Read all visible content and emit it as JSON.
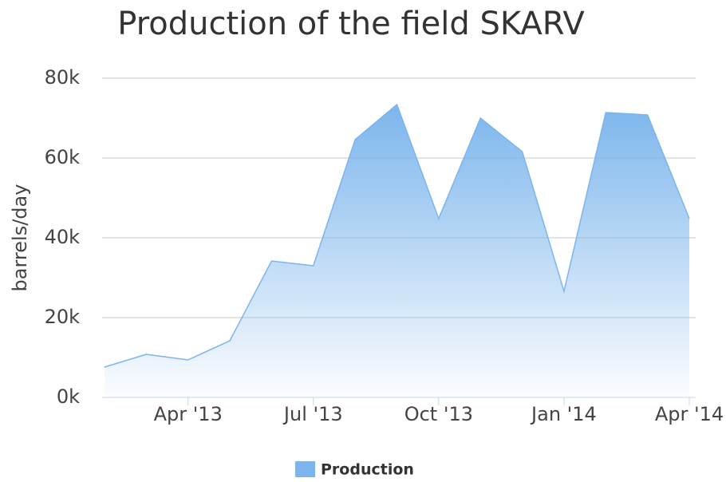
{
  "chart_data": {
    "type": "area",
    "title": "Production of the field SKARV",
    "y_label": "barrels/day",
    "x": [
      "2013-02",
      "2013-03",
      "2013-04",
      "2013-05",
      "2013-06",
      "2013-07",
      "2013-08",
      "2013-09",
      "2013-10",
      "2013-11",
      "2013-12",
      "2014-01",
      "2014-02",
      "2014-03",
      "2014-04"
    ],
    "series": [
      {
        "name": "Production",
        "color": "#7cb5ec",
        "values": [
          7600,
          10800,
          9400,
          14200,
          34200,
          33000,
          64600,
          73400,
          44800,
          70000,
          61600,
          26600,
          71400,
          70800,
          44800
        ]
      }
    ],
    "xlim": [
      "2013-02",
      "2014-04"
    ],
    "xticks": [
      {
        "value": "2013-04",
        "label": "Apr '13"
      },
      {
        "value": "2013-07",
        "label": "Jul '13"
      },
      {
        "value": "2013-10",
        "label": "Oct '13"
      },
      {
        "value": "2014-01",
        "label": "Jan '14"
      },
      {
        "value": "2014-04",
        "label": "Apr '14"
      }
    ],
    "ylim": [
      0,
      80000
    ],
    "yticks": [
      {
        "value": 0,
        "label": "0k"
      },
      {
        "value": 20000,
        "label": "20k"
      },
      {
        "value": 40000,
        "label": "40k"
      },
      {
        "value": 60000,
        "label": "60k"
      },
      {
        "value": 80000,
        "label": "80k"
      }
    ],
    "grid": true,
    "legend": "bottom"
  }
}
